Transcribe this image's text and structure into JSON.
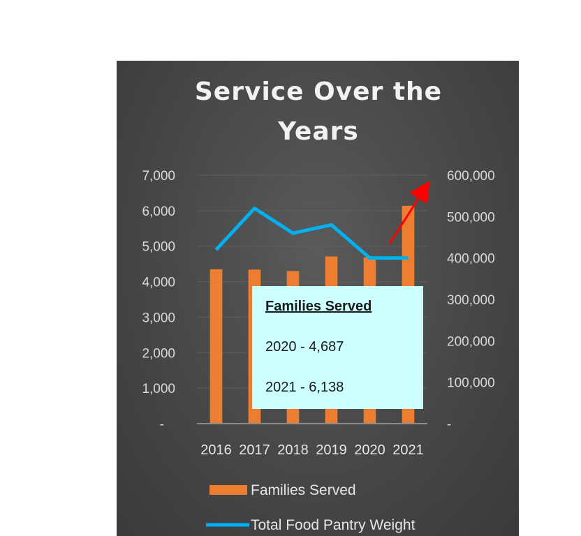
{
  "chart_data": {
    "type": "bar",
    "title_lines": [
      "Service Over the",
      "Years"
    ],
    "categories": [
      "2016",
      "2017",
      "2018",
      "2019",
      "2020",
      "2021"
    ],
    "series": [
      {
        "name": "Families Served",
        "type": "bar",
        "axis": "left",
        "color": "#ed7d31",
        "values": [
          4350,
          4340,
          4300,
          4710,
          4687,
          6138
        ]
      },
      {
        "name": "Total Food Pantry Weight",
        "type": "line",
        "axis": "right",
        "color": "#00b0f0",
        "values": [
          420000,
          520000,
          460000,
          480000,
          400000,
          400000
        ]
      }
    ],
    "y_left": {
      "ylim": [
        0,
        7000
      ],
      "ticks": [
        "-",
        "1,000",
        "2,000",
        "3,000",
        "4,000",
        "5,000",
        "6,000",
        "7,000"
      ]
    },
    "y_right": {
      "ylim": [
        0,
        600000
      ],
      "ticks": [
        "-",
        "100,000",
        "200,000",
        "300,000",
        "400,000",
        "500,000",
        "600,000"
      ]
    },
    "grid": true,
    "legend": "bottom",
    "callout": {
      "title": "Families Served",
      "lines": [
        "2020 - 4,687",
        "2021 - 6,138"
      ],
      "background": "#ccffff"
    },
    "annotation_arrow": {
      "color": "#ff0000",
      "direction": "up-right"
    }
  }
}
